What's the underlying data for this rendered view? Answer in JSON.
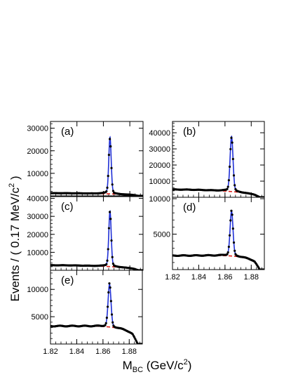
{
  "colors": {
    "fit": "#1f2fd6",
    "background": "#e0201a",
    "points": "#000000"
  },
  "y_axis_title": {
    "prefix": "Events / ( 0.17 MeV/c",
    "sup": "2",
    "suffix": " )"
  },
  "x_axis_title": {
    "main": "M",
    "sub": "BC",
    "unit_prefix": " (GeV/c",
    "sup": "2",
    "unit_suffix": ")"
  },
  "chart_data": [
    {
      "type": "line",
      "panel_label": "(a)",
      "xlim": [
        1.82,
        1.89
      ],
      "ylim": [
        0,
        33000
      ],
      "yticks": [
        10000,
        20000,
        30000
      ],
      "ytick_labels": [
        "10000",
        "20000",
        "30000"
      ],
      "xticks": [
        1.82,
        1.84,
        1.86,
        1.88
      ],
      "xtick_labels": [],
      "peak": 31000,
      "peak_x": 1.865,
      "width": 0.0009,
      "bkg_level": 1200,
      "bkg_slope": 0,
      "endpoint": 1.8865
    },
    {
      "type": "line",
      "panel_label": "(b)",
      "xlim": [
        1.82,
        1.89
      ],
      "ylim": [
        0,
        47000
      ],
      "yticks": [
        10000,
        20000,
        30000,
        40000
      ],
      "ytick_labels": [
        "10000",
        "20000",
        "30000",
        "40000"
      ],
      "xticks": [
        1.82,
        1.84,
        1.86,
        1.88
      ],
      "xtick_labels": [],
      "peak": 44500,
      "peak_x": 1.865,
      "width": 0.0011,
      "bkg_level": 4800,
      "bkg_slope": 0,
      "endpoint": 1.8865
    },
    {
      "type": "line",
      "panel_label": "(c)",
      "xlim": [
        1.82,
        1.89
      ],
      "ylim": [
        0,
        41000
      ],
      "yticks": [
        10000,
        20000,
        30000,
        40000
      ],
      "ytick_labels": [
        "10000",
        "20000",
        "30000",
        "40000"
      ],
      "xticks": [
        1.82,
        1.84,
        1.86,
        1.88
      ],
      "xtick_labels": [],
      "peak": 39000,
      "peak_x": 1.865,
      "width": 0.0009,
      "bkg_level": 2800,
      "bkg_slope": 0,
      "endpoint": 1.8865
    },
    {
      "type": "line",
      "panel_label": "(d)",
      "xlim": [
        1.82,
        1.89
      ],
      "ylim": [
        0,
        10200
      ],
      "yticks": [
        5000,
        10000
      ],
      "ytick_labels": [
        "5000",
        "10000"
      ],
      "xticks": [
        1.82,
        1.84,
        1.86,
        1.88
      ],
      "xtick_labels": [
        "1.82",
        "1.84",
        "1.86",
        "1.88"
      ],
      "peak": 9500,
      "peak_x": 1.865,
      "width": 0.0011,
      "bkg_level": 3600,
      "bkg_slope": 0.6,
      "endpoint": 1.8865
    },
    {
      "type": "line",
      "panel_label": "(e)",
      "xlim": [
        1.82,
        1.89
      ],
      "ylim": [
        0,
        13500
      ],
      "yticks": [
        5000,
        10000
      ],
      "ytick_labels": [
        "5000",
        "10000"
      ],
      "xticks": [
        1.82,
        1.84,
        1.86,
        1.88
      ],
      "xtick_labels": [
        "1.82",
        "1.84",
        "1.86",
        "1.88"
      ],
      "peak": 12500,
      "peak_x": 1.865,
      "width": 0.0011,
      "bkg_level": 5700,
      "bkg_slope": 0.55,
      "endpoint": 1.8865
    }
  ]
}
